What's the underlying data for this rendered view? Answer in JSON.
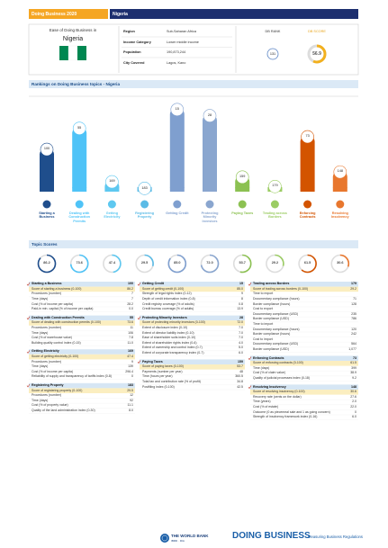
{
  "header": {
    "title": "Doing Business 2020",
    "country": "Nigeria"
  },
  "profile": {
    "title": "Ease of Doing Business in",
    "country": "Nigeria",
    "facts": [
      {
        "label": "Region",
        "value": "Sub-Saharan Africa"
      },
      {
        "label": "Income Category",
        "value": "Lower middle income"
      },
      {
        "label": "Population",
        "value": "190,873,244"
      },
      {
        "label": "City Covered",
        "value": "Lagos, Kano"
      }
    ],
    "rank_label": "DB RANK",
    "rank": 131,
    "score_label": "DB SCORE",
    "score": 56.9
  },
  "chart_data": {
    "type": "bar",
    "title": "Rankings on Doing Business topics - Nigeria",
    "categories": [
      "Starting a Business",
      "Dealing with Construction Permits",
      "Getting Electricity",
      "Registering Property",
      "Getting Credit",
      "Protecting Minority Investors",
      "Paying Taxes",
      "Trading across Borders",
      "Enforcing Contracts",
      "Resolving Insolvency"
    ],
    "values": [
      100,
      55,
      169,
      183,
      15,
      28,
      159,
      179,
      73,
      148
    ],
    "colors": [
      "#1f4e8c",
      "#4fc3f7",
      "#5ec8f0",
      "#5bbbe6",
      "#7f9fcf",
      "#8aa6cf",
      "#8cc152",
      "#9bcc63",
      "#d35400",
      "#e8772e"
    ],
    "ylim": [
      190,
      0
    ]
  },
  "scores": {
    "title": "Topic Scores",
    "values": [
      86.2,
      73.6,
      47.4,
      29.5,
      85.0,
      72.0,
      53.7,
      29.2,
      61.5,
      30.6
    ],
    "value_labels": [
      "86.2",
      "73.6",
      "47.4",
      "29.5",
      "85.0",
      "72.0",
      "53.7",
      "29.2",
      "61.5",
      "30.6"
    ],
    "lim": [
      0,
      100
    ]
  },
  "tables": [
    {
      "title": "Starting a Business",
      "rank": "100",
      "rows": [
        {
          "label": "Score of starting a business (0-100)",
          "value": "86.2"
        },
        {
          "label": "Procedures (number)",
          "value": "7"
        },
        {
          "label": "Time (days)",
          "value": "7"
        },
        {
          "label": "Cost (% of income per capita)",
          "value": "28.2"
        },
        {
          "label": "Paid-in min. capital (% of income per capita)",
          "value": "0.0"
        }
      ]
    },
    {
      "title": "Dealing with Construction Permits",
      "rank": "55",
      "rows": [
        {
          "label": "Score of dealing with construction permits (0-100)",
          "value": "73.6"
        },
        {
          "label": "Procedures (number)",
          "value": "11"
        },
        {
          "label": "Time (days)",
          "value": "106"
        },
        {
          "label": "Cost (% of warehouse value)",
          "value": "7.8"
        },
        {
          "label": "Building quality control index (0-15)",
          "value": "11.0"
        }
      ]
    },
    {
      "title": "Getting Electricity",
      "rank": "169",
      "rows": [
        {
          "label": "Score of getting electricity (0-100)",
          "value": "47.4"
        },
        {
          "label": "Procedures (number)",
          "value": "9"
        },
        {
          "label": "Time (days)",
          "value": "139"
        },
        {
          "label": "Cost (% of income per capita)",
          "value": "296.4"
        },
        {
          "label": "Reliability of supply and transparency of tariffs index (0-8)",
          "value": "0"
        }
      ]
    },
    {
      "title": "Registering Property",
      "rank": "183",
      "rows": [
        {
          "label": "Score of registering property (0-100)",
          "value": "29.5"
        },
        {
          "label": "Procedures (number)",
          "value": "12"
        },
        {
          "label": "Time (days)",
          "value": "92"
        },
        {
          "label": "Cost (% of property value)",
          "value": "11.1"
        },
        {
          "label": "Quality of the land administration index (0-30)",
          "value": "8.0"
        }
      ]
    },
    {
      "title": "Getting Credit",
      "rank": "15",
      "rows": [
        {
          "label": "Score of getting credit (0-100)",
          "value": "85.0"
        },
        {
          "label": "Strength of legal rights index (0-12)",
          "value": "9"
        },
        {
          "label": "Depth of credit information index (0-8)",
          "value": "8"
        },
        {
          "label": "Credit registry coverage (% of adults)",
          "value": "0.8"
        },
        {
          "label": "Credit bureau coverage (% of adults)",
          "value": "13.9"
        }
      ]
    },
    {
      "title": "Protecting Minority Investors",
      "rank": "28",
      "rows": [
        {
          "label": "Score of protecting minority investors (0-100)",
          "value": "72.0"
        },
        {
          "label": "Extent of disclosure index (0-10)",
          "value": "7.0"
        },
        {
          "label": "Extent of director liability index (0-10)",
          "value": "7.0"
        },
        {
          "label": "Ease of shareholder suits index (0-10)",
          "value": "7.0"
        },
        {
          "label": "Extent of shareholder rights index (0-6)",
          "value": "4.0"
        },
        {
          "label": "Extent of ownership and control index (0-7)",
          "value": "5.0"
        },
        {
          "label": "Extent of corporate transparency index (0-7)",
          "value": "6.0"
        }
      ]
    },
    {
      "title": "Paying Taxes",
      "rank": "159",
      "rows": [
        {
          "label": "Score of paying taxes (0-100)",
          "value": "53.7"
        },
        {
          "label": "Payments (number per year)",
          "value": "48"
        },
        {
          "label": "Time (hours per year)",
          "value": "360.5"
        },
        {
          "label": "Total tax and contribution rate (% of profit)",
          "value": "34.8"
        },
        {
          "label": "Postfiling index (0-100)",
          "value": "42.5"
        }
      ]
    },
    {
      "title": "Trading across Borders",
      "rank": "179",
      "rows": [
        {
          "label": "Score of trading across borders (0-100)",
          "value": "29.2"
        },
        {
          "label": "Time to export"
        },
        {
          "label": "Documentary compliance (hours)",
          "value": "71"
        },
        {
          "label": "Border compliance (hours)",
          "value": "128"
        },
        {
          "label": "Cost to export"
        },
        {
          "label": "Documentary compliance (USD)",
          "value": "235"
        },
        {
          "label": "Border compliance (USD)",
          "value": "786"
        },
        {
          "label": "Time to import"
        },
        {
          "label": "Documentary compliance (hours)",
          "value": "120"
        },
        {
          "label": "Border compliance (hours)",
          "value": "242"
        },
        {
          "label": "Cost to import"
        },
        {
          "label": "Documentary compliance (USD)",
          "value": "564"
        },
        {
          "label": "Border compliance (USD)",
          "value": "1,077"
        }
      ]
    },
    {
      "title": "Enforcing Contracts",
      "rank": "73",
      "rows": [
        {
          "label": "Score of enforcing contracts (0-100)",
          "value": "61.5"
        },
        {
          "label": "Time (days)",
          "value": "399"
        },
        {
          "label": "Cost (% of claim value)",
          "value": "38.9"
        },
        {
          "label": "Quality of judicial processes index (0-18)",
          "value": "9.2"
        }
      ]
    },
    {
      "title": "Resolving Insolvency",
      "rank": "148",
      "rows": [
        {
          "label": "Score of resolving insolvency (0-100)",
          "value": "30.6"
        },
        {
          "label": "Recovery rate (cents on the dollar)",
          "value": "27.6"
        },
        {
          "label": "Time (years)",
          "value": "2.0"
        },
        {
          "label": "Cost (% of estate)",
          "value": "22.0"
        },
        {
          "label": "Outcome (0 as piecemeal sale and 1 as going concern)",
          "value": "0"
        },
        {
          "label": "Strength of insolvency framework index (0-16)",
          "value": "6.0"
        }
      ]
    }
  ],
  "footer": {
    "org": "THE WORLD BANK",
    "org_sub": "IBRD · IDA",
    "brand": "DOING BUSINESS",
    "tagline": "Measuring Business Regulations"
  }
}
